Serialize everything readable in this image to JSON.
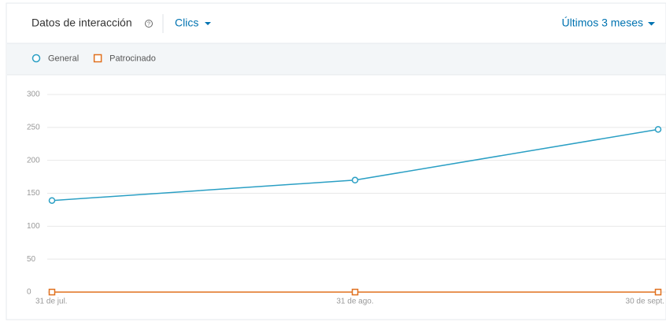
{
  "header": {
    "title": "Datos de interacción",
    "metric": "Clics",
    "period": "Últimos 3 meses"
  },
  "chart_data": {
    "type": "line",
    "categories": [
      "31 de jul.",
      "31 de ago.",
      "30 de sept."
    ],
    "series": [
      {
        "name": "General",
        "color": "#2a9fc4",
        "marker": "circle",
        "values": [
          139,
          170,
          247
        ]
      },
      {
        "name": "Patrocinado",
        "color": "#e0701e",
        "marker": "square",
        "values": [
          0,
          0,
          0
        ]
      }
    ],
    "ylim": [
      0,
      300
    ],
    "yticks": [
      0,
      50,
      100,
      150,
      200,
      250,
      300
    ],
    "grid": true
  }
}
